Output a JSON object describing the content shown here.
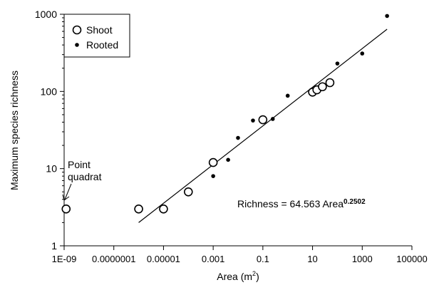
{
  "chart_data": {
    "type": "scatter",
    "title": "",
    "xlabel": "Area (m",
    "xlabel_sup": "2",
    "xlabel_close": ")",
    "ylabel": "Maximum species richness",
    "xscale": "log",
    "yscale": "log",
    "xlim": [
      1e-09,
      100000
    ],
    "ylim": [
      1,
      1000
    ],
    "xticks": [
      {
        "value": 1e-09,
        "label": "1E-09"
      },
      {
        "value": 1e-07,
        "label": "0.0000001"
      },
      {
        "value": 1e-05,
        "label": "0.00001"
      },
      {
        "value": 0.001,
        "label": "0.001"
      },
      {
        "value": 0.1,
        "label": "0.1"
      },
      {
        "value": 10,
        "label": "10"
      },
      {
        "value": 1000,
        "label": "1000"
      },
      {
        "value": 100000,
        "label": "100000"
      }
    ],
    "yticks": [
      {
        "value": 1,
        "label": "1"
      },
      {
        "value": 10,
        "label": "10"
      },
      {
        "value": 100,
        "label": "100"
      },
      {
        "value": 1000,
        "label": "1000"
      }
    ],
    "grid": false,
    "legend_position": "top-left",
    "series": [
      {
        "name": "Shoot",
        "marker": "open-circle",
        "points": [
          {
            "x": 1.2e-09,
            "y": 3
          },
          {
            "x": 1e-06,
            "y": 3
          },
          {
            "x": 1e-05,
            "y": 3
          },
          {
            "x": 0.0001,
            "y": 5
          },
          {
            "x": 0.001,
            "y": 12
          },
          {
            "x": 0.1,
            "y": 43
          },
          {
            "x": 10,
            "y": 98
          },
          {
            "x": 15,
            "y": 105
          },
          {
            "x": 25,
            "y": 115
          },
          {
            "x": 50,
            "y": 130
          }
        ]
      },
      {
        "name": "Rooted",
        "marker": "filled-dot",
        "points": [
          {
            "x": 0.001,
            "y": 8
          },
          {
            "x": 0.004,
            "y": 13
          },
          {
            "x": 0.01,
            "y": 25
          },
          {
            "x": 0.04,
            "y": 42
          },
          {
            "x": 0.25,
            "y": 44
          },
          {
            "x": 1,
            "y": 88
          },
          {
            "x": 100,
            "y": 230
          },
          {
            "x": 1000,
            "y": 310
          },
          {
            "x": 10000,
            "y": 950
          }
        ]
      }
    ],
    "fit_line": {
      "x": [
        1e-06,
        10000
      ],
      "y": [
        2,
        640
      ]
    },
    "equation": {
      "text": "Richness = 64.563 Area",
      "exponent": "0.2502"
    },
    "annotations": [
      {
        "text_lines": [
          "Point",
          "quadrat"
        ],
        "points_to": {
          "x": 1.2e-09,
          "y": 3
        }
      }
    ]
  }
}
